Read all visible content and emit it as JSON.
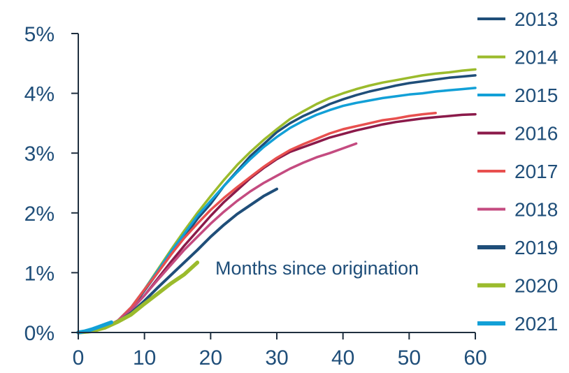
{
  "chart_data": {
    "type": "line",
    "title": "",
    "xlabel": "",
    "ylabel": "",
    "annotation": "Months since origination",
    "xlim": [
      0,
      60
    ],
    "ylim": [
      0,
      5
    ],
    "x_ticks": [
      0,
      10,
      20,
      30,
      40,
      50,
      60
    ],
    "x_tick_labels": [
      "0",
      "10",
      "20",
      "30",
      "40",
      "50",
      "60"
    ],
    "y_ticks": [
      0,
      1,
      2,
      3,
      4,
      5
    ],
    "y_tick_labels": [
      "0%",
      "1%",
      "2%",
      "3%",
      "4%",
      "5%"
    ],
    "y_unit": "%",
    "grid": false,
    "legend_position": "right",
    "series": [
      {
        "name": "2013",
        "color": "#1f4e79",
        "points": [
          [
            0,
            0
          ],
          [
            2,
            0.02
          ],
          [
            4,
            0.08
          ],
          [
            6,
            0.2
          ],
          [
            8,
            0.4
          ],
          [
            10,
            0.7
          ],
          [
            12,
            1.0
          ],
          [
            14,
            1.3
          ],
          [
            16,
            1.6
          ],
          [
            18,
            1.9
          ],
          [
            20,
            2.15
          ],
          [
            22,
            2.45
          ],
          [
            24,
            2.7
          ],
          [
            26,
            2.95
          ],
          [
            28,
            3.15
          ],
          [
            30,
            3.35
          ],
          [
            32,
            3.5
          ],
          [
            34,
            3.62
          ],
          [
            36,
            3.72
          ],
          [
            38,
            3.82
          ],
          [
            40,
            3.9
          ],
          [
            42,
            3.97
          ],
          [
            44,
            4.03
          ],
          [
            46,
            4.08
          ],
          [
            48,
            4.13
          ],
          [
            50,
            4.17
          ],
          [
            52,
            4.2
          ],
          [
            54,
            4.23
          ],
          [
            56,
            4.26
          ],
          [
            58,
            4.28
          ],
          [
            60,
            4.3
          ]
        ]
      },
      {
        "name": "2014",
        "color": "#9bbb2c",
        "points": [
          [
            0,
            0
          ],
          [
            2,
            0.02
          ],
          [
            4,
            0.08
          ],
          [
            6,
            0.2
          ],
          [
            8,
            0.42
          ],
          [
            10,
            0.72
          ],
          [
            12,
            1.05
          ],
          [
            14,
            1.38
          ],
          [
            16,
            1.7
          ],
          [
            18,
            2.0
          ],
          [
            20,
            2.28
          ],
          [
            22,
            2.55
          ],
          [
            24,
            2.8
          ],
          [
            26,
            3.02
          ],
          [
            28,
            3.22
          ],
          [
            30,
            3.4
          ],
          [
            32,
            3.57
          ],
          [
            34,
            3.7
          ],
          [
            36,
            3.82
          ],
          [
            38,
            3.92
          ],
          [
            40,
            4.0
          ],
          [
            42,
            4.07
          ],
          [
            44,
            4.13
          ],
          [
            46,
            4.18
          ],
          [
            48,
            4.22
          ],
          [
            50,
            4.26
          ],
          [
            52,
            4.3
          ],
          [
            54,
            4.33
          ],
          [
            56,
            4.35
          ],
          [
            58,
            4.38
          ],
          [
            60,
            4.4
          ]
        ]
      },
      {
        "name": "2015",
        "color": "#12a0d7",
        "points": [
          [
            0,
            0
          ],
          [
            2,
            0.02
          ],
          [
            4,
            0.08
          ],
          [
            6,
            0.2
          ],
          [
            8,
            0.42
          ],
          [
            10,
            0.72
          ],
          [
            12,
            1.03
          ],
          [
            14,
            1.35
          ],
          [
            16,
            1.65
          ],
          [
            18,
            1.95
          ],
          [
            20,
            2.2
          ],
          [
            22,
            2.45
          ],
          [
            24,
            2.68
          ],
          [
            26,
            2.9
          ],
          [
            28,
            3.1
          ],
          [
            30,
            3.27
          ],
          [
            32,
            3.42
          ],
          [
            34,
            3.54
          ],
          [
            36,
            3.64
          ],
          [
            38,
            3.72
          ],
          [
            40,
            3.79
          ],
          [
            42,
            3.84
          ],
          [
            44,
            3.88
          ],
          [
            46,
            3.92
          ],
          [
            48,
            3.95
          ],
          [
            50,
            3.98
          ],
          [
            52,
            4.0
          ],
          [
            54,
            4.03
          ],
          [
            56,
            4.05
          ],
          [
            58,
            4.07
          ],
          [
            60,
            4.09
          ]
        ]
      },
      {
        "name": "2016",
        "color": "#8b1a4a",
        "points": [
          [
            0,
            0
          ],
          [
            2,
            0.02
          ],
          [
            4,
            0.08
          ],
          [
            6,
            0.2
          ],
          [
            8,
            0.38
          ],
          [
            10,
            0.62
          ],
          [
            12,
            0.9
          ],
          [
            14,
            1.18
          ],
          [
            16,
            1.45
          ],
          [
            18,
            1.7
          ],
          [
            20,
            1.95
          ],
          [
            22,
            2.18
          ],
          [
            24,
            2.38
          ],
          [
            26,
            2.58
          ],
          [
            28,
            2.75
          ],
          [
            30,
            2.9
          ],
          [
            32,
            3.02
          ],
          [
            34,
            3.1
          ],
          [
            36,
            3.18
          ],
          [
            38,
            3.26
          ],
          [
            40,
            3.32
          ],
          [
            42,
            3.38
          ],
          [
            44,
            3.43
          ],
          [
            46,
            3.48
          ],
          [
            48,
            3.52
          ],
          [
            50,
            3.55
          ],
          [
            52,
            3.58
          ],
          [
            54,
            3.6
          ],
          [
            56,
            3.62
          ],
          [
            58,
            3.64
          ],
          [
            60,
            3.65
          ]
        ]
      },
      {
        "name": "2017",
        "color": "#e8504f",
        "points": [
          [
            0,
            0
          ],
          [
            2,
            0.02
          ],
          [
            4,
            0.08
          ],
          [
            6,
            0.2
          ],
          [
            8,
            0.42
          ],
          [
            10,
            0.72
          ],
          [
            12,
            1.0
          ],
          [
            14,
            1.3
          ],
          [
            16,
            1.58
          ],
          [
            18,
            1.82
          ],
          [
            20,
            2.05
          ],
          [
            22,
            2.25
          ],
          [
            24,
            2.43
          ],
          [
            26,
            2.6
          ],
          [
            28,
            2.77
          ],
          [
            30,
            2.92
          ],
          [
            32,
            3.05
          ],
          [
            34,
            3.15
          ],
          [
            36,
            3.24
          ],
          [
            38,
            3.33
          ],
          [
            40,
            3.4
          ],
          [
            42,
            3.45
          ],
          [
            44,
            3.5
          ],
          [
            46,
            3.55
          ],
          [
            48,
            3.58
          ],
          [
            50,
            3.62
          ],
          [
            52,
            3.65
          ],
          [
            54,
            3.67
          ]
        ]
      },
      {
        "name": "2018",
        "color": "#c44b80",
        "points": [
          [
            0,
            0
          ],
          [
            2,
            0.02
          ],
          [
            4,
            0.08
          ],
          [
            6,
            0.2
          ],
          [
            8,
            0.38
          ],
          [
            10,
            0.62
          ],
          [
            12,
            0.88
          ],
          [
            14,
            1.13
          ],
          [
            16,
            1.38
          ],
          [
            18,
            1.6
          ],
          [
            20,
            1.82
          ],
          [
            22,
            2.02
          ],
          [
            24,
            2.2
          ],
          [
            26,
            2.36
          ],
          [
            28,
            2.5
          ],
          [
            30,
            2.62
          ],
          [
            32,
            2.74
          ],
          [
            34,
            2.84
          ],
          [
            36,
            2.93
          ],
          [
            38,
            3.0
          ],
          [
            40,
            3.08
          ],
          [
            42,
            3.16
          ]
        ]
      },
      {
        "name": "2019",
        "color": "#1f4e79",
        "points": [
          [
            0,
            0
          ],
          [
            2,
            0.02
          ],
          [
            4,
            0.08
          ],
          [
            6,
            0.18
          ],
          [
            8,
            0.33
          ],
          [
            10,
            0.53
          ],
          [
            12,
            0.75
          ],
          [
            14,
            0.96
          ],
          [
            16,
            1.17
          ],
          [
            18,
            1.38
          ],
          [
            20,
            1.6
          ],
          [
            22,
            1.8
          ],
          [
            24,
            1.98
          ],
          [
            26,
            2.13
          ],
          [
            28,
            2.28
          ],
          [
            30,
            2.4
          ]
        ]
      },
      {
        "name": "2020",
        "color": "#9bbb2c",
        "points": [
          [
            0,
            0
          ],
          [
            2,
            0.02
          ],
          [
            4,
            0.08
          ],
          [
            6,
            0.18
          ],
          [
            8,
            0.3
          ],
          [
            10,
            0.48
          ],
          [
            12,
            0.65
          ],
          [
            14,
            0.82
          ],
          [
            16,
            0.97
          ],
          [
            18,
            1.17
          ]
        ]
      },
      {
        "name": "2021",
        "color": "#12a0d7",
        "points": [
          [
            0,
            0
          ],
          [
            1,
            0.02
          ],
          [
            2,
            0.05
          ],
          [
            3,
            0.09
          ],
          [
            4,
            0.13
          ],
          [
            5,
            0.17
          ]
        ]
      }
    ]
  }
}
